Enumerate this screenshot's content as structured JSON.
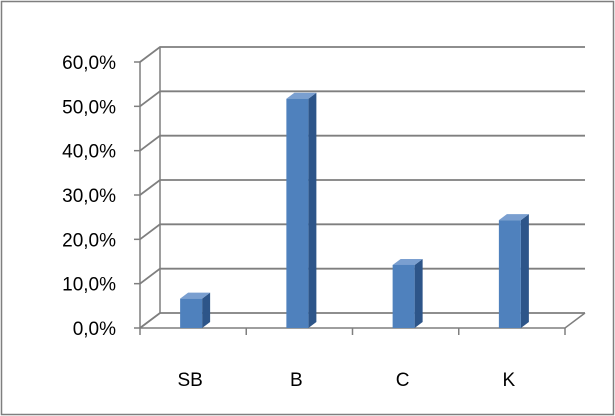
{
  "chart_data": {
    "type": "bar",
    "style": "3d-clustered-column",
    "categories": [
      "SB",
      "B",
      "C",
      "K"
    ],
    "values": [
      7.3,
      52.4,
      14.9,
      25.0
    ],
    "value_format": "percent_one_decimal",
    "ylim": [
      0,
      60
    ],
    "y_ticks": [
      0,
      10,
      20,
      30,
      40,
      50,
      60
    ],
    "y_tick_labels": [
      "0,0%",
      "10,0%",
      "20,0%",
      "30,0%",
      "40,0%",
      "50,0%",
      "60,0%"
    ],
    "grid": true,
    "legend": "none",
    "title": "",
    "xlabel": "",
    "ylabel": ""
  },
  "colors": {
    "bar_front": "#4f81bd",
    "bar_side": "#2d5589",
    "bar_top": "#7a9fd0",
    "grid": "#7f7f7f",
    "frame": "#7f7f7f",
    "text": "#000000",
    "background": "#ffffff"
  }
}
